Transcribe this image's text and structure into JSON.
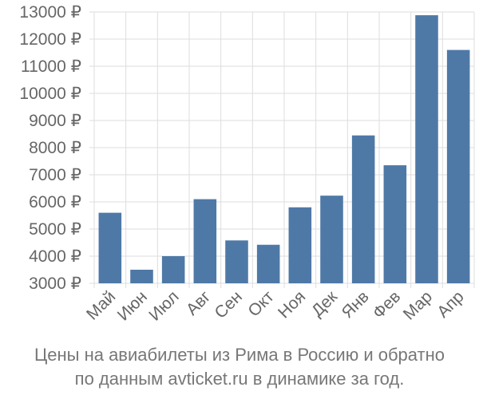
{
  "chart_data": {
    "type": "bar",
    "categories": [
      "Май",
      "Июн",
      "Июл",
      "Авг",
      "Сен",
      "Окт",
      "Ноя",
      "Дек",
      "Янв",
      "Фев",
      "Мар",
      "Апр"
    ],
    "values": [
      5600,
      3500,
      4000,
      6100,
      4580,
      4420,
      5800,
      6230,
      8450,
      7350,
      12880,
      11600
    ],
    "ylim": [
      3000,
      13000
    ],
    "yticks": [
      3000,
      4000,
      5000,
      6000,
      7000,
      8000,
      9000,
      10000,
      11000,
      12000,
      13000
    ],
    "ytick_labels": [
      "3000 ₽",
      "4000 ₽",
      "5000 ₽",
      "6000 ₽",
      "7000 ₽",
      "8000 ₽",
      "9000 ₽",
      "10000 ₽",
      "11000 ₽",
      "12000 ₽",
      "13000 ₽"
    ],
    "bar_color": "#4e79a7",
    "grid": true,
    "title": "",
    "xlabel": "",
    "ylabel": ""
  },
  "caption": {
    "line1": "Цены на авиабилеты из Рима в Россию и обратно",
    "line2": "по данным avticket.ru в динамике за год."
  }
}
